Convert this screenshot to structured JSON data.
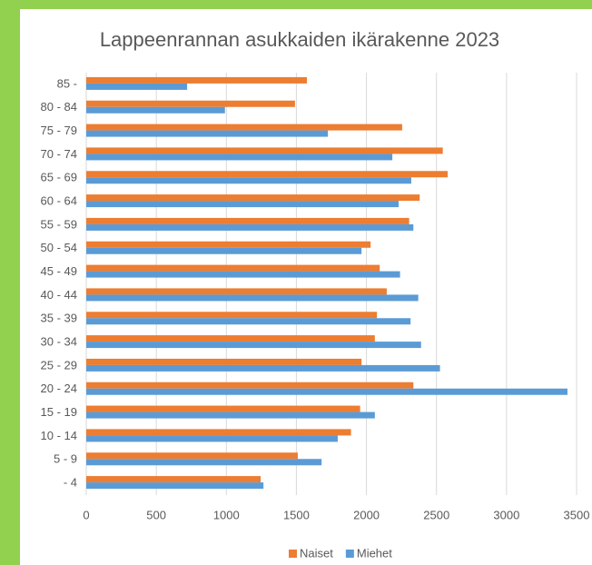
{
  "chart_data": {
    "type": "hbar",
    "title": "Lappeenrannan asukkaiden ikärakenne 2023",
    "categories": [
      "85 -",
      "80 - 84",
      "75 - 79",
      "70 - 74",
      "65 - 69",
      "60 - 64",
      "55 - 59",
      "50 - 54",
      "45 - 49",
      "40 - 44",
      "35 - 39",
      "30 - 34",
      "25 - 29",
      "20 - 24",
      "15 - 19",
      "10 - 14",
      "5 - 9",
      "- 4"
    ],
    "series": [
      {
        "name": "Naiset",
        "color": "#ed7d31",
        "values": [
          1575,
          1490,
          2255,
          2545,
          2580,
          2380,
          2305,
          2030,
          2095,
          2145,
          2075,
          2060,
          1965,
          2335,
          1955,
          1890,
          1510,
          1245
        ]
      },
      {
        "name": "Miehet",
        "color": "#5b9bd5",
        "values": [
          720,
          990,
          1725,
          2185,
          2320,
          2230,
          2335,
          1965,
          2240,
          2370,
          2315,
          2390,
          2525,
          3435,
          2060,
          1795,
          1680,
          1265
        ]
      }
    ],
    "xlim": [
      0,
      3500
    ],
    "xticks": [
      0,
      500,
      1000,
      1500,
      2000,
      2500,
      3000,
      3500
    ],
    "grid": true,
    "legend": "bottom"
  }
}
